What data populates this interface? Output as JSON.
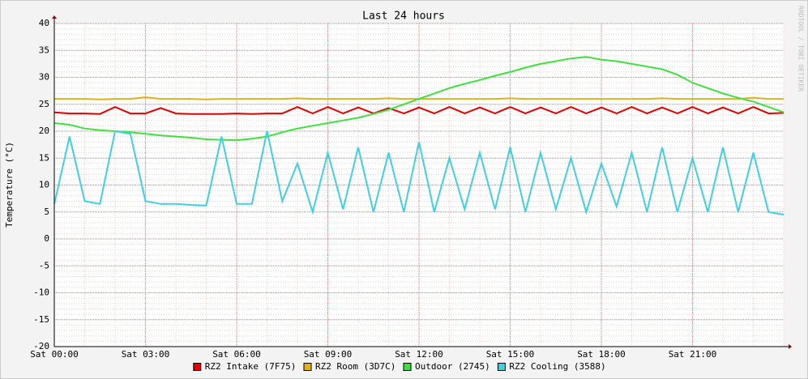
{
  "chart_data": {
    "type": "line",
    "title": "Last 24 hours",
    "y_label": "Temperature (°C)",
    "watermark": "RRDTOOL / TOBI OETIKER",
    "x": [
      0,
      0.5,
      1,
      1.5,
      2,
      2.5,
      3,
      3.5,
      4,
      4.5,
      5,
      5.5,
      6,
      6.5,
      7,
      7.5,
      8,
      8.5,
      9,
      9.5,
      10,
      10.5,
      11,
      11.5,
      12,
      12.5,
      13,
      13.5,
      14,
      14.5,
      15,
      15.5,
      16,
      16.5,
      17,
      17.5,
      18,
      18.5,
      19,
      19.5,
      20,
      20.5,
      21,
      21.5,
      22,
      22.5,
      23,
      23.5,
      24
    ],
    "xlim": [
      0,
      24
    ],
    "xticks": [
      {
        "value": 0,
        "label": "Sat 00:00"
      },
      {
        "value": 3,
        "label": "Sat 03:00"
      },
      {
        "value": 6,
        "label": "Sat 06:00"
      },
      {
        "value": 9,
        "label": "Sat 09:00"
      },
      {
        "value": 12,
        "label": "Sat 12:00"
      },
      {
        "value": 15,
        "label": "Sat 15:00"
      },
      {
        "value": 18,
        "label": "Sat 18:00"
      },
      {
        "value": 21,
        "label": "Sat 21:00"
      }
    ],
    "ylim": [
      -20,
      40
    ],
    "yticks": [
      -20,
      -15,
      -10,
      -5,
      0,
      5,
      10,
      15,
      20,
      25,
      30,
      35,
      40
    ],
    "grid": true,
    "series": [
      {
        "name": "RZ2 Intake (7F75)",
        "color": "#e00000",
        "values": [
          23.5,
          23.3,
          23.3,
          23.2,
          24.5,
          23.3,
          23.3,
          24.3,
          23.3,
          23.2,
          23.2,
          23.2,
          23.3,
          23.2,
          23.3,
          23.3,
          24.5,
          23.3,
          24.5,
          23.3,
          24.4,
          23.3,
          24.3,
          23.3,
          24.4,
          23.3,
          24.5,
          23.3,
          24.4,
          23.3,
          24.5,
          23.3,
          24.4,
          23.3,
          24.5,
          23.3,
          24.4,
          23.3,
          24.5,
          23.3,
          24.4,
          23.3,
          24.5,
          23.3,
          24.4,
          23.3,
          24.5,
          23.3,
          23.4
        ]
      },
      {
        "name": "RZ2 Room (3D7C)",
        "color": "#e0b020",
        "values": [
          26,
          26,
          26,
          25.9,
          26,
          26,
          26.3,
          26,
          26,
          26,
          25.9,
          26,
          26,
          26,
          26,
          26,
          26.1,
          26,
          26,
          26,
          26,
          26,
          26.1,
          26,
          26,
          26,
          26,
          26,
          26,
          26,
          26.1,
          26,
          26,
          26,
          26,
          26,
          26,
          26,
          26,
          26,
          26.1,
          26,
          26,
          26,
          26,
          26,
          26.2,
          26,
          26
        ]
      },
      {
        "name": "Outdoor (2745)",
        "color": "#40e040",
        "values": [
          21.5,
          21.2,
          20.5,
          20.2,
          20,
          19.8,
          19.5,
          19.2,
          19,
          18.8,
          18.5,
          18.4,
          18.3,
          18.6,
          19,
          19.8,
          20.5,
          21,
          21.5,
          22,
          22.5,
          23.2,
          24,
          25,
          26,
          27,
          28,
          28.8,
          29.5,
          30.3,
          31,
          31.8,
          32.5,
          33,
          33.5,
          33.8,
          33.3,
          33,
          32.5,
          32,
          31.5,
          30.5,
          29,
          28,
          27,
          26.2,
          25.5,
          24.5,
          23.5
        ]
      },
      {
        "name": "RZ2 Cooling (3588)",
        "color": "#40d0e0",
        "values": [
          6.5,
          19,
          7,
          6.5,
          20,
          19.5,
          7,
          6.5,
          6.5,
          6.3,
          6.2,
          19,
          6.5,
          6.5,
          20,
          7,
          14,
          5,
          16,
          5.5,
          17,
          5,
          16,
          5,
          18,
          5,
          15,
          5.5,
          16,
          5.5,
          17,
          5,
          16,
          5.5,
          15,
          5,
          14,
          6,
          16,
          5,
          17,
          5,
          15,
          5,
          17,
          5,
          16,
          5,
          4.5
        ]
      }
    ]
  }
}
